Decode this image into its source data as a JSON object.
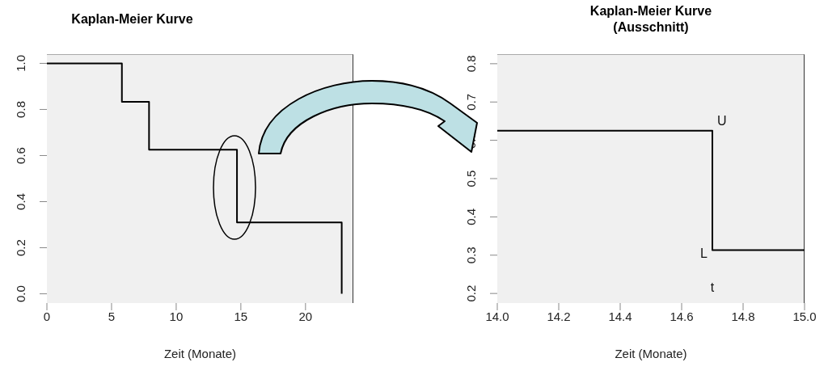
{
  "chart_data": [
    {
      "type": "step",
      "title": "Kaplan-Meier Kurve",
      "xlabel": "Zeit (Monate)",
      "x": [
        0,
        5.8,
        7.9,
        14.7,
        22.8
      ],
      "series": [
        {
          "color": "#000000",
          "values": [
            1,
            0.833,
            0.625,
            0.31,
            0
          ]
        }
      ],
      "xlim": [
        0,
        23.7
      ],
      "xticks": [
        0,
        5,
        10,
        15,
        20
      ],
      "ylim": [
        -0.04,
        1.04
      ],
      "yticks": [
        {
          "value": 0,
          "label": "0.0"
        },
        0.2,
        0.4,
        0.6,
        0.8,
        {
          "value": 1,
          "label": "1.0"
        }
      ],
      "grid": false,
      "legend": false,
      "marker": "none",
      "line_style": "solid"
    },
    {
      "type": "step",
      "title": "Kaplan-Meier Kurve\n(Ausschnitt)",
      "xlabel": "Zeit (Monate)",
      "x": [
        14,
        14.7,
        15
      ],
      "series": [
        {
          "color": "#000000",
          "values": [
            0.625,
            0.313,
            0.313
          ]
        }
      ],
      "xlim": [
        14,
        15
      ],
      "xticks": [
        {
          "value": 14,
          "label": "14.0"
        },
        14.2,
        14.4,
        14.6,
        14.8,
        {
          "value": 15,
          "label": "15.0"
        }
      ],
      "ylim": [
        0.175,
        0.825
      ],
      "yticks": [
        0.2,
        0.3,
        0.4,
        0.5,
        0.6,
        0.7,
        0.8
      ],
      "annotations": [
        {
          "text": "U",
          "x": 14.7,
          "y": 0.625
        },
        {
          "text": "L",
          "x": 14.7,
          "y": 0.313
        },
        "t"
      ],
      "grid": false,
      "legend": false,
      "marker": "none",
      "line_style": "solid"
    }
  ]
}
